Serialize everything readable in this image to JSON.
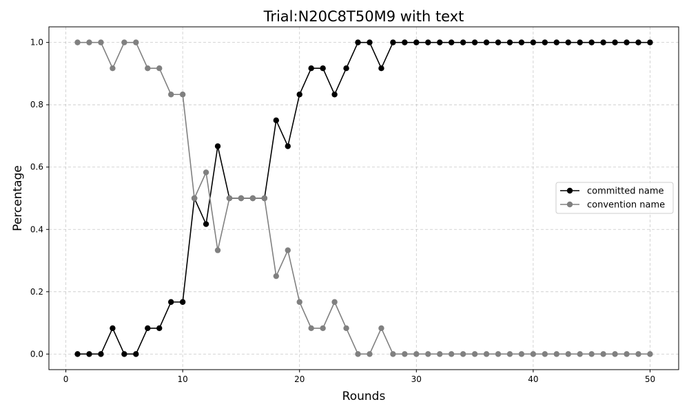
{
  "chart_data": {
    "type": "line",
    "title": "Trial:N20C8T50M9 with text",
    "xlabel": "Rounds",
    "ylabel": "Percentage",
    "xlim": [
      -1.45,
      52.45
    ],
    "ylim": [
      -0.05,
      1.05
    ],
    "xticks": [
      0,
      10,
      20,
      30,
      40,
      50
    ],
    "xtick_labels": [
      "0",
      "10",
      "20",
      "30",
      "40",
      "50"
    ],
    "yticks": [
      0.0,
      0.2,
      0.4,
      0.6,
      0.8,
      1.0
    ],
    "ytick_labels": [
      "0.0",
      "0.2",
      "0.4",
      "0.6",
      "0.8",
      "1.0"
    ],
    "grid": true,
    "legend_position": "center-right",
    "x": [
      1,
      2,
      3,
      4,
      5,
      6,
      7,
      8,
      9,
      10,
      11,
      12,
      13,
      14,
      15,
      16,
      17,
      18,
      19,
      20,
      21,
      22,
      23,
      24,
      25,
      26,
      27,
      28,
      29,
      30,
      31,
      32,
      33,
      34,
      35,
      36,
      37,
      38,
      39,
      40,
      41,
      42,
      43,
      44,
      45,
      46,
      47,
      48,
      49,
      50
    ],
    "series": [
      {
        "name": "committed name",
        "color": "#000000",
        "values": [
          0,
          0,
          0,
          0.083,
          0,
          0,
          0.083,
          0.083,
          0.167,
          0.167,
          0.5,
          0.417,
          0.667,
          0.5,
          0.5,
          0.5,
          0.5,
          0.75,
          0.667,
          0.833,
          0.917,
          0.917,
          0.833,
          0.917,
          1,
          1,
          0.917,
          1,
          1,
          1,
          1,
          1,
          1,
          1,
          1,
          1,
          1,
          1,
          1,
          1,
          1,
          1,
          1,
          1,
          1,
          1,
          1,
          1,
          1,
          1
        ]
      },
      {
        "name": "convention name",
        "color": "#808080",
        "values": [
          1,
          1,
          1,
          0.917,
          1,
          1,
          0.917,
          0.917,
          0.833,
          0.833,
          0.5,
          0.583,
          0.333,
          0.5,
          0.5,
          0.5,
          0.5,
          0.25,
          0.333,
          0.167,
          0.083,
          0.083,
          0.167,
          0.083,
          0,
          0,
          0.083,
          0,
          0,
          0,
          0,
          0,
          0,
          0,
          0,
          0,
          0,
          0,
          0,
          0,
          0,
          0,
          0,
          0,
          0,
          0,
          0,
          0,
          0,
          0
        ]
      }
    ]
  }
}
